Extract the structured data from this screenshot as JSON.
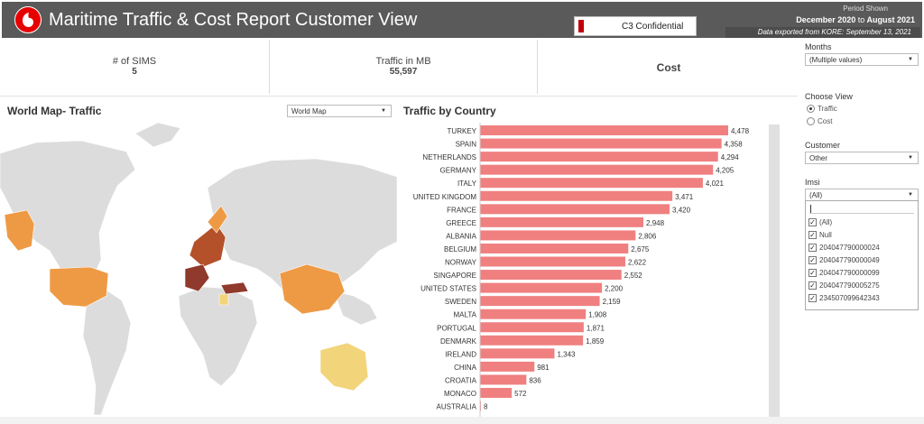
{
  "header": {
    "title": "Maritime Traffic & Cost Report Customer View",
    "confidential": "C3 Confidential",
    "period_label": "Period Shown",
    "period_from": "December 2020",
    "period_to_word": "to",
    "period_to": "August 2021",
    "exported": "Data exported from KORE: September 13, 2021"
  },
  "kpis": [
    {
      "label": "# of SIMS",
      "value": "5"
    },
    {
      "label": "Traffic in MB",
      "value": "55,597"
    },
    {
      "label": "Cost",
      "value": ""
    }
  ],
  "map_section": {
    "title": "World Map- Traffic",
    "view_select": "World Map"
  },
  "map_colors": {
    "land": "#dcdcdc",
    "low": "#f2d47a",
    "mid": "#ee9a45",
    "high": "#b4502a",
    "highest": "#8f3a2c"
  },
  "filters": {
    "months": {
      "label": "Months",
      "value": "(Multiple values)"
    },
    "choose_view": {
      "label": "Choose View",
      "options": [
        {
          "label": "Traffic",
          "selected": true
        },
        {
          "label": "Cost",
          "selected": false
        }
      ]
    },
    "customer": {
      "label": "Customer",
      "value": "Other"
    },
    "imsi": {
      "label": "Imsi",
      "value": "(All)",
      "items": [
        {
          "label": "(All)",
          "checked": true
        },
        {
          "label": "Null",
          "checked": true
        },
        {
          "label": "204047790000024",
          "checked": true
        },
        {
          "label": "204047790000049",
          "checked": true
        },
        {
          "label": "204047790000099",
          "checked": true
        },
        {
          "label": "204047790005275",
          "checked": true
        },
        {
          "label": "234507099642343",
          "checked": true
        }
      ]
    }
  },
  "chart_data": {
    "type": "bar",
    "orientation": "horizontal",
    "title": "Traffic by Country",
    "color": "#f08080",
    "categories": [
      "TURKEY",
      "SPAIN",
      "NETHERLANDS",
      "GERMANY",
      "ITALY",
      "UNITED KINGDOM",
      "FRANCE",
      "GREECE",
      "ALBANIA",
      "BELGIUM",
      "NORWAY",
      "SINGAPORE",
      "UNITED STATES",
      "SWEDEN",
      "MALTA",
      "PORTUGAL",
      "DENMARK",
      "IRELAND",
      "CHINA",
      "CROATIA",
      "MONACO",
      "AUSTRALIA"
    ],
    "values": [
      4478,
      4358,
      4294,
      4205,
      4021,
      3471,
      3420,
      2948,
      2806,
      2675,
      2622,
      2552,
      2200,
      2159,
      1908,
      1871,
      1859,
      1343,
      981,
      836,
      572,
      8
    ],
    "value_labels": [
      "4,478",
      "4,358",
      "4,294",
      "4,205",
      "4,021",
      "3,471",
      "3,420",
      "2,948",
      "2,806",
      "2,675",
      "2,622",
      "2,552",
      "2,200",
      "2,159",
      "1,908",
      "1,871",
      "1,859",
      "1,343",
      "981",
      "836",
      "572",
      "8"
    ]
  }
}
